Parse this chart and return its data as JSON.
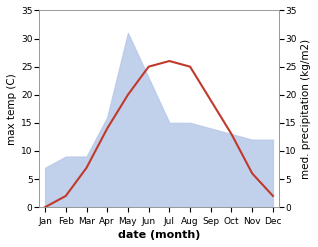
{
  "months": [
    "Jan",
    "Feb",
    "Mar",
    "Apr",
    "May",
    "Jun",
    "Jul",
    "Aug",
    "Sep",
    "Oct",
    "Nov",
    "Dec"
  ],
  "temperature": [
    0,
    2,
    7,
    14,
    20,
    25,
    26,
    25,
    19,
    13,
    6,
    2
  ],
  "precipitation": [
    7,
    9,
    9,
    16,
    31,
    23,
    15,
    15,
    14,
    13,
    12,
    12
  ],
  "temp_color": "#c0392b",
  "precip_color": "#b8c9e8",
  "ylim_left": [
    0,
    35
  ],
  "ylim_right": [
    0,
    35
  ],
  "ylabel_left": "max temp (C)",
  "ylabel_right": "med. precipitation (kg/m2)",
  "xlabel": "date (month)",
  "bg_color": "#ffffff",
  "label_fontsize": 7.5,
  "tick_fontsize": 6.5,
  "xlabel_fontsize": 8,
  "linewidth": 1.5
}
